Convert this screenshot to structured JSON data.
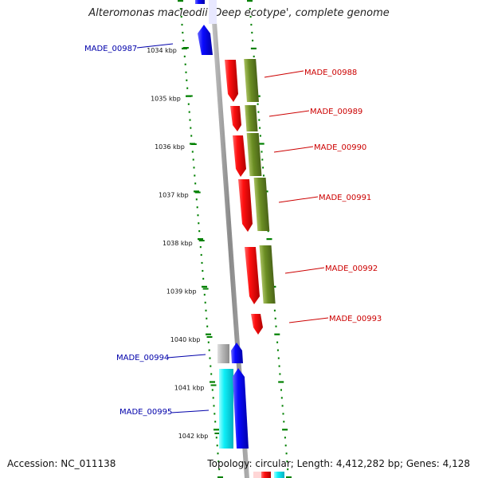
{
  "title": "Alteromonas macleodii 'Deep ecotype', complete genome",
  "footer": {
    "accession": "Accession: NC_011138",
    "stats": "Topology: circular; Length: 4,412,282 bp; Genes: 4,128"
  },
  "colors": {
    "forward_cds": "#0000ee",
    "reverse_cds": "#ee0000",
    "rna": "#00e5ee",
    "other": "#b0b0b0",
    "cog_feature": "#6b8e23",
    "backbone": "#909090",
    "gc_skew": "#008000",
    "label_blue": "#0000aa",
    "label_red": "#cc0000"
  },
  "ticks": [
    {
      "kbp": 1034,
      "label": "1034 kbp"
    },
    {
      "kbp": 1035,
      "label": "1035 kbp"
    },
    {
      "kbp": 1036,
      "label": "1036 kbp"
    },
    {
      "kbp": 1037,
      "label": "1037 kbp"
    },
    {
      "kbp": 1038,
      "label": "1038 kbp"
    },
    {
      "kbp": 1039,
      "label": "1039 kbp"
    },
    {
      "kbp": 1040,
      "label": "1040 kbp"
    },
    {
      "kbp": 1041,
      "label": "1041 kbp"
    },
    {
      "kbp": 1042,
      "label": "1042 kbp"
    }
  ],
  "gene_labels": [
    {
      "name": "MADE_00987",
      "side": "left",
      "color": "#0000aa"
    },
    {
      "name": "MADE_00988",
      "side": "right",
      "color": "#cc0000"
    },
    {
      "name": "MADE_00989",
      "side": "right",
      "color": "#cc0000"
    },
    {
      "name": "MADE_00990",
      "side": "right",
      "color": "#cc0000"
    },
    {
      "name": "MADE_00991",
      "side": "right",
      "color": "#cc0000"
    },
    {
      "name": "MADE_00992",
      "side": "right",
      "color": "#cc0000"
    },
    {
      "name": "MADE_00993",
      "side": "right",
      "color": "#cc0000"
    },
    {
      "name": "MADE_00994",
      "side": "left",
      "color": "#0000aa"
    },
    {
      "name": "MADE_00995",
      "side": "left",
      "color": "#0000aa"
    }
  ]
}
